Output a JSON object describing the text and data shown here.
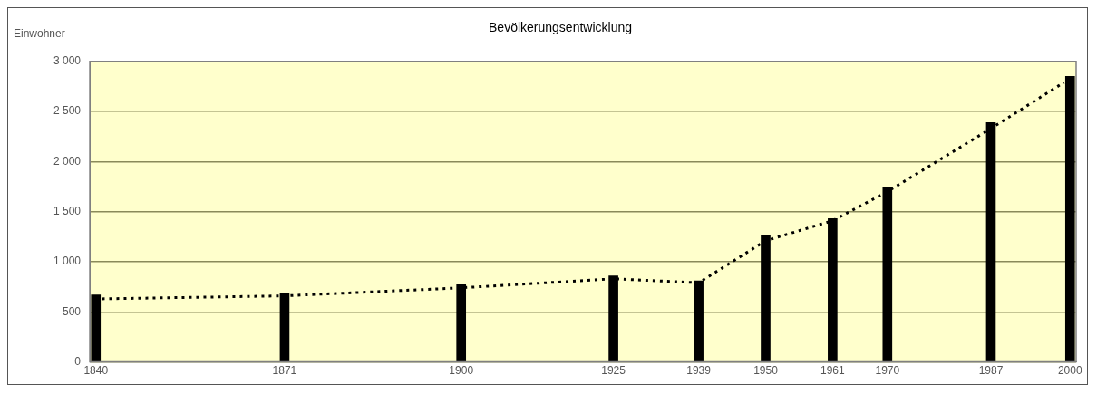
{
  "chart_data": {
    "type": "bar",
    "title": "Bevölkerungsentwicklung",
    "ylabel": "Einwohner",
    "x": [
      1840,
      1871,
      1900,
      1925,
      1939,
      1950,
      1961,
      1970,
      1987,
      2000
    ],
    "series": [
      {
        "color": "#000000",
        "values": [
          670,
          680,
          770,
          860,
          810,
          1260,
          1430,
          1740,
          2390,
          2850
        ]
      },
      {
        "type": "line",
        "color": "#000000",
        "line_style": "dotted",
        "x": [
          1841,
          1871,
          1900,
          1925,
          1939,
          1950,
          1961,
          1970,
          1987,
          1999
        ],
        "values": [
          630,
          660,
          740,
          830,
          790,
          1210,
          1410,
          1700,
          2330,
          2790
        ]
      }
    ],
    "xlim": [
      1839,
      2001
    ],
    "xticks": [
      1840,
      1871,
      1900,
      1925,
      1939,
      1950,
      1961,
      1970,
      1987,
      2000
    ],
    "ylim": [
      0,
      3000
    ],
    "yticks": [
      0,
      500,
      {
        "value": 1000,
        "label": "1 000"
      },
      {
        "value": 1500,
        "label": "1 500"
      },
      {
        "value": 2000,
        "label": "2 000"
      },
      {
        "value": 2500,
        "label": "2 500"
      },
      {
        "value": 3000,
        "label": "3 000"
      }
    ],
    "grid": "y",
    "legend": false
  }
}
